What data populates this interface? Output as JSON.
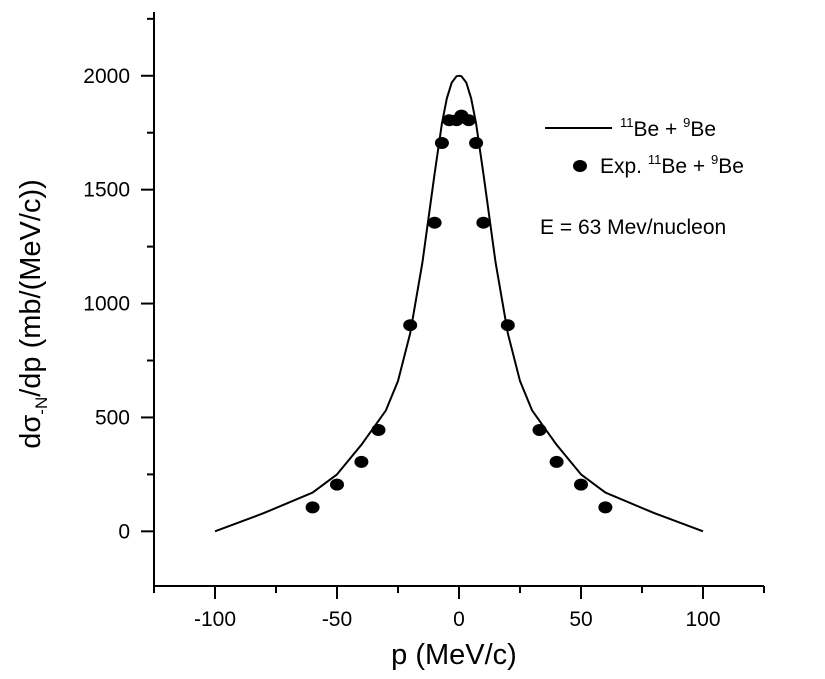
{
  "chart_data": {
    "type": "scatter",
    "xlabel": "p (MeV/c)",
    "ylabel": {
      "prefix": "dσ",
      "subscript": "-N",
      "suffix": "/dp (mb/(MeV/c))"
    },
    "xlim": [
      -125,
      125
    ],
    "ylim": [
      -240,
      2280
    ],
    "xticks": [
      -100,
      -50,
      0,
      50,
      100
    ],
    "yticks": [
      0,
      500,
      1000,
      1500,
      2000
    ],
    "grid": false,
    "legend_position": "top-right",
    "series": [
      {
        "kind": "line",
        "color": "#000000",
        "legend": {
          "sup1": "11",
          "mid": "Be + ",
          "sup2": "9",
          "end": "Be"
        },
        "x": [
          -100,
          -80,
          -60,
          -50,
          -40,
          -30,
          -25,
          -20,
          -15,
          -10,
          -7,
          -5,
          -3,
          -1,
          0,
          1,
          3,
          5,
          7,
          10,
          15,
          20,
          25,
          30,
          40,
          50,
          60,
          80,
          100
        ],
        "y": [
          0,
          80,
          170,
          250,
          380,
          530,
          660,
          870,
          1180,
          1570,
          1790,
          1900,
          1970,
          1998,
          2000,
          1998,
          1970,
          1900,
          1790,
          1570,
          1180,
          870,
          660,
          530,
          380,
          250,
          170,
          80,
          0
        ]
      },
      {
        "kind": "scatter",
        "color": "#000000",
        "legend": {
          "pre": "Exp. ",
          "sup1": "11",
          "mid": "Be + ",
          "sup2": "9",
          "end": "Be"
        },
        "x": [
          -60,
          -50,
          -40,
          -33,
          -20,
          -10,
          -7,
          -4,
          -1,
          1,
          4,
          7,
          10,
          20,
          33,
          40,
          50,
          60
        ],
        "y": [
          105,
          205,
          305,
          445,
          905,
          1355,
          1705,
          1805,
          1805,
          1825,
          1805,
          1705,
          1355,
          905,
          445,
          305,
          205,
          105
        ]
      }
    ],
    "annotation": "E = 63 Mev/nucleon"
  }
}
